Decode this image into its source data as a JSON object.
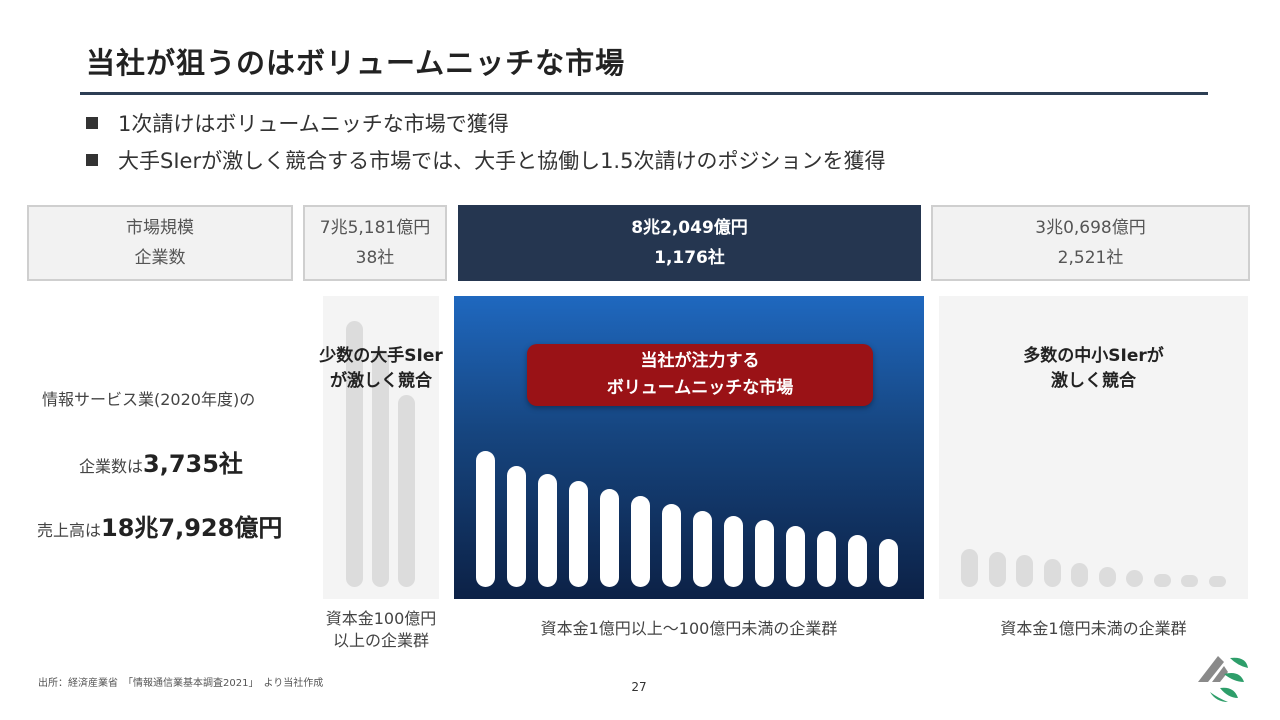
{
  "title": "当社が狙うのはボリュームニッチな市場",
  "bullets": [
    "1次請けはボリュームニッチな市場で獲得",
    "大手SIerが激しく競合する市場では、大手と協働し1.5次請けのポジションを獲得"
  ],
  "header_row": {
    "label": {
      "line1": "市場規模",
      "line2": "企業数"
    },
    "large": {
      "amount": "7兆5,181億円",
      "count": "38社"
    },
    "mid": {
      "amount": "8兆2,049億円",
      "count": "1,176社"
    },
    "small": {
      "amount": "3兆0,698億円",
      "count": "2,521社"
    }
  },
  "left_stats": {
    "line1": "情報サービス業(2020年度)の",
    "companies_prefix": "企業数は",
    "companies_value": "3,735社",
    "sales_prefix": "売上高は",
    "sales_value": "18兆7,928億円"
  },
  "segments": {
    "large": {
      "label_line1": "少数の大手SIer",
      "label_line2": "が激しく競合",
      "caption_line1": "資本金100億円",
      "caption_line2": "以上の企業群",
      "bar_levels": [
        1.0,
        0.89,
        0.72
      ]
    },
    "mid": {
      "banner_line1": "当社が注力する",
      "banner_line2": "ボリュームニッチな市場",
      "caption": "資本金1億円以上～100億円未満の企業群",
      "bar_levels": [
        1.0,
        0.89,
        0.83,
        0.78,
        0.72,
        0.67,
        0.61,
        0.56,
        0.52,
        0.49,
        0.45,
        0.41,
        0.38,
        0.35
      ]
    },
    "small": {
      "label_line1": "多数の中小SIerが",
      "label_line2": "激しく競合",
      "caption": "資本金1億円未満の企業群",
      "bar_levels": [
        1.0,
        0.92,
        0.84,
        0.74,
        0.62,
        0.53,
        0.45,
        0.35,
        0.32,
        0.28
      ]
    }
  },
  "colors": {
    "navy": "#253650",
    "banner_red": "#9a1216",
    "bar_grey": "#dcdcdc"
  },
  "footer": {
    "source": "出所：経済産業省　「情報通信業基本調査2021」　より当社作成",
    "page_number": "27"
  },
  "logo_icon": "company-logo-icon"
}
